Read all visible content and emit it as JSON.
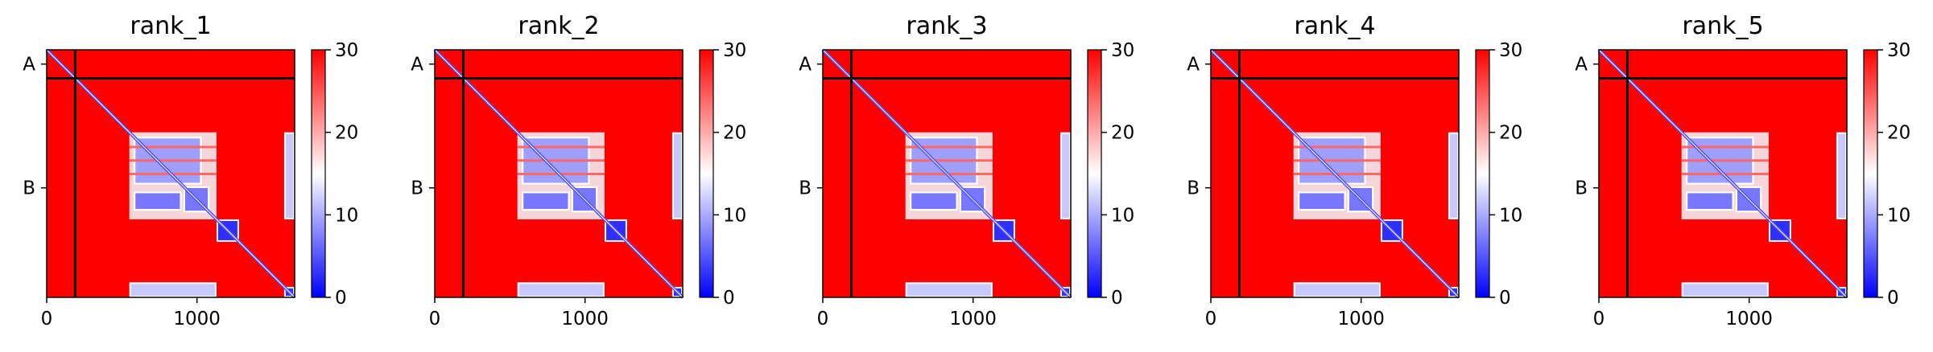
{
  "figure": {
    "panel_titles": [
      "rank_1",
      "rank_2",
      "rank_3",
      "rank_4",
      "rank_5"
    ]
  },
  "chart_data": {
    "type": "heatmap",
    "panels": [
      {
        "title": "rank_1"
      },
      {
        "title": "rank_2"
      },
      {
        "title": "rank_3"
      },
      {
        "title": "rank_4"
      },
      {
        "title": "rank_5"
      }
    ],
    "x_ticks": [
      0,
      1000
    ],
    "xlim": [
      0,
      1650
    ],
    "y_chain_labels": [
      "A",
      "B"
    ],
    "chain_boundary": 190,
    "chain_A_range": [
      0,
      190
    ],
    "chain_B_range": [
      190,
      1650
    ],
    "colorbar": {
      "ticks": [
        0,
        10,
        20,
        30
      ],
      "range": [
        0,
        30
      ],
      "colors": [
        "#0000ff",
        "#ffffff",
        "#ff0000"
      ]
    },
    "background_color": "#ff0000",
    "low_value_regions": [
      {
        "x": [
          550,
          1130
        ],
        "y": [
          550,
          1130
        ],
        "intensity": "mixed"
      },
      {
        "x": [
          1130,
          1280
        ],
        "y": [
          1130,
          1280
        ],
        "intensity": "low"
      },
      {
        "x": [
          550,
          1130
        ],
        "y": [
          1550,
          1650
        ],
        "intensity": "medium"
      },
      {
        "x": [
          1580,
          1650
        ],
        "y": [
          550,
          1130
        ],
        "intensity": "medium"
      },
      {
        "x": [
          1580,
          1650
        ],
        "y": [
          1580,
          1650
        ],
        "intensity": "low"
      }
    ]
  }
}
